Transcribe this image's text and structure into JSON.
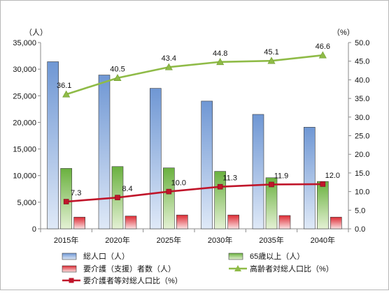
{
  "chart_data": {
    "type": "bar",
    "categories": [
      "2015年",
      "2020年",
      "2025年",
      "2030年",
      "2035年",
      "2040年"
    ],
    "y_left": {
      "unit": "（人）",
      "min": 0,
      "max": 35000,
      "step": 5000,
      "tick_labels": [
        "0",
        "5,000",
        "10,000",
        "15,000",
        "20,000",
        "25,000",
        "30,000",
        "35,000"
      ]
    },
    "y_right": {
      "unit": "（%）",
      "min": 0,
      "max": 50,
      "step": 5,
      "tick_labels": [
        "0.0",
        "5.0",
        "10.0",
        "15.0",
        "20.0",
        "25.0",
        "30.0",
        "35.0",
        "40.0",
        "45.0",
        "50.0"
      ]
    },
    "series": [
      {
        "name": "総人口（人）",
        "type": "bar",
        "axis": "left",
        "color": "#5b86c9",
        "values": [
          31400,
          28900,
          26400,
          24000,
          21500,
          19100
        ]
      },
      {
        "name": "65歳以上（人）",
        "type": "bar",
        "axis": "left",
        "color": "#5aa832",
        "values": [
          11350,
          11700,
          11450,
          10800,
          9600,
          8900
        ]
      },
      {
        "name": "要介護（支援）者数（人）",
        "type": "bar",
        "axis": "left",
        "color": "#d9232e",
        "values": [
          2200,
          2400,
          2600,
          2600,
          2500,
          2200
        ]
      },
      {
        "name": "高齢者対総人口比（%）",
        "type": "line",
        "axis": "right",
        "color": "#8fbb47",
        "marker": "triangle",
        "values": [
          36.1,
          40.5,
          43.4,
          44.8,
          45.1,
          46.6
        ],
        "labels": [
          "36.1",
          "40.5",
          "43.4",
          "44.8",
          "45.1",
          "46.6"
        ]
      },
      {
        "name": "要介護者等対総人口比（%）",
        "type": "line",
        "axis": "right",
        "color": "#c0152a",
        "marker": "square",
        "values": [
          7.3,
          8.4,
          10.0,
          11.3,
          11.9,
          12.0
        ],
        "labels": [
          "7.3",
          "8.4",
          "10.0",
          "11.3",
          "11.9",
          "12.0"
        ]
      }
    ],
    "grid": false,
    "legend_position": "bottom"
  }
}
